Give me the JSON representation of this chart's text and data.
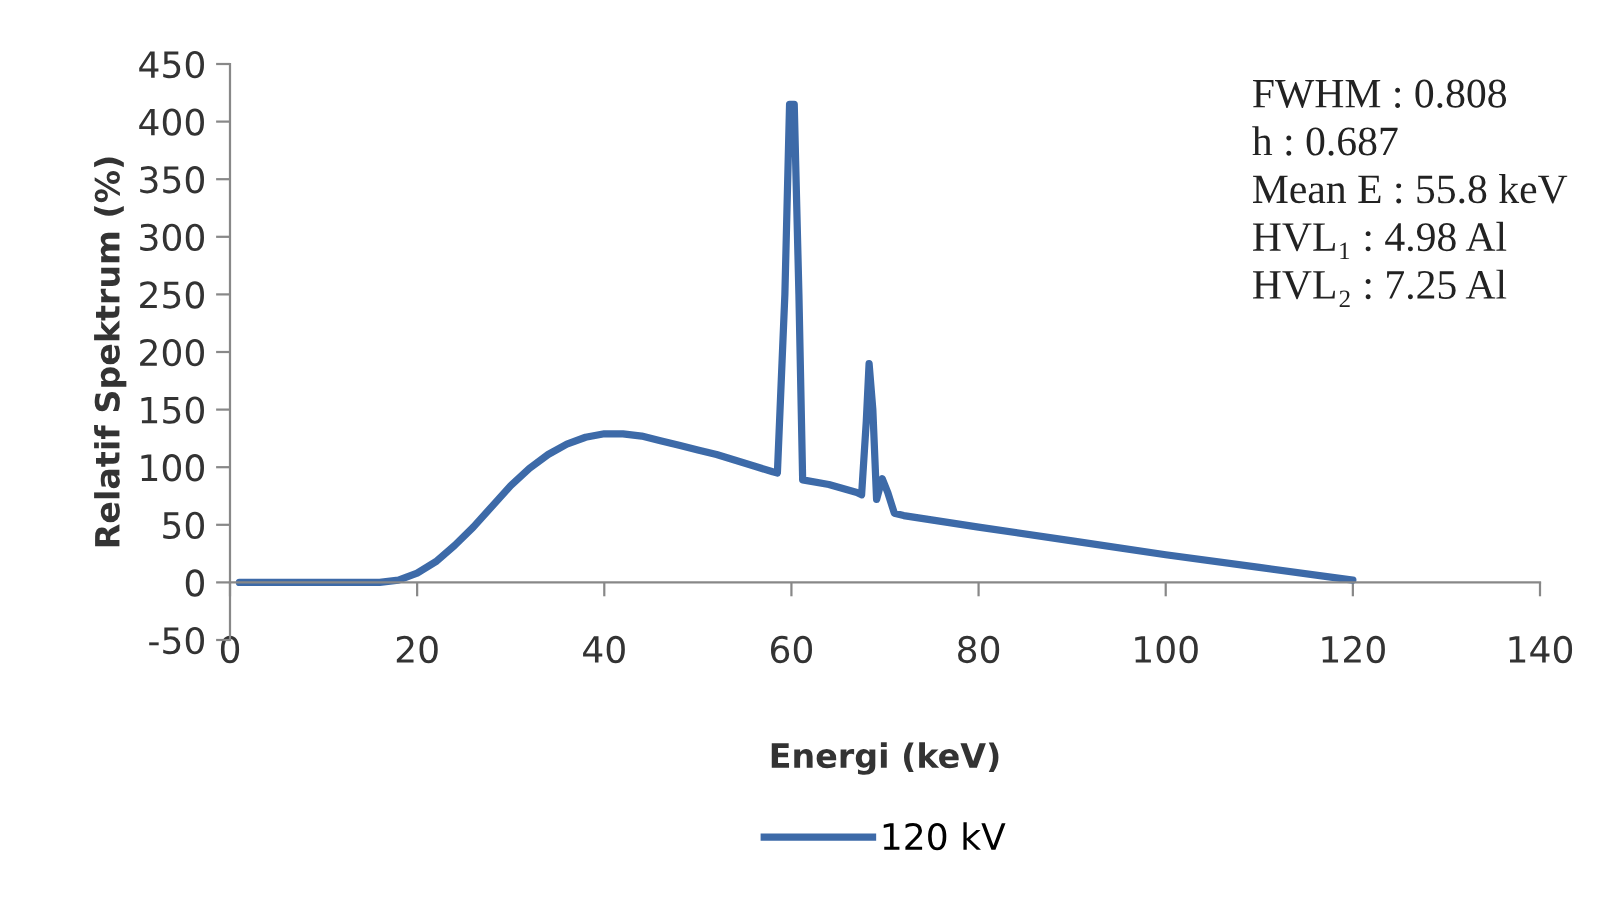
{
  "chart_data": {
    "type": "line",
    "xlabel": "Energi (keV)",
    "ylabel": "Relatif Spektrum (%)",
    "xlim": [
      0,
      140
    ],
    "xticks": [
      0,
      20,
      40,
      60,
      80,
      100,
      120,
      140
    ],
    "ylim": [
      -50,
      450
    ],
    "yticks": [
      -50,
      0,
      50,
      100,
      150,
      200,
      250,
      300,
      350,
      400,
      450
    ],
    "grid": false,
    "legend": "bottom",
    "marker": "none",
    "line_style": "solid",
    "annotations": [
      "FWHM : 0.808",
      "h : 0.687",
      "Mean E : 55.8 keV",
      "HVL₁ : 4.98 Al",
      "HVL₂ : 7.25 Al"
    ],
    "series": [
      {
        "name": "120 kV",
        "color": "#3d6aa8",
        "x": [
          1,
          10,
          16,
          18,
          20,
          22,
          24,
          26,
          28,
          30,
          32,
          34,
          36,
          38,
          40,
          42,
          44,
          46,
          48,
          50,
          52,
          54,
          56,
          58,
          58.5,
          59.3,
          59.8,
          60.3,
          60.8,
          61.2,
          64,
          67,
          67.5,
          68,
          68.3,
          68.7,
          69.1,
          69.7,
          70.3,
          71,
          72,
          80,
          90,
          100,
          110,
          120
        ],
        "values": [
          0,
          0,
          0,
          2,
          8,
          18,
          32,
          48,
          66,
          84,
          99,
          111,
          120,
          126,
          129,
          129,
          127,
          123,
          119,
          115,
          111,
          106,
          101,
          96,
          95,
          250,
          415,
          415,
          250,
          89,
          85,
          78,
          76,
          140,
          190,
          150,
          72,
          90,
          78,
          60,
          58,
          48,
          36,
          24,
          13,
          2
        ]
      }
    ]
  }
}
